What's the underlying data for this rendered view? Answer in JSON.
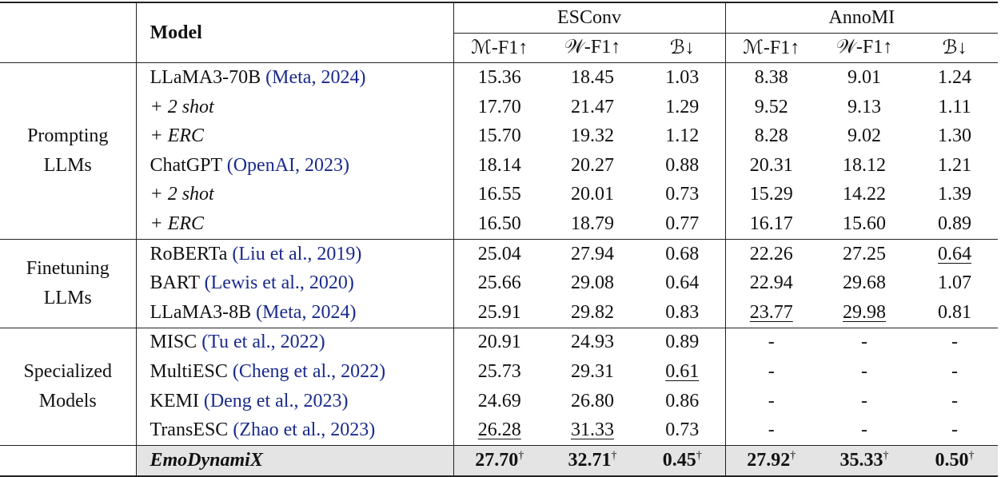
{
  "table": {
    "header": {
      "model": "Model",
      "groups": [
        "ESConv",
        "AnnoMI"
      ],
      "metrics": [
        "ℳ-F1↑",
        "𝒲-F1↑",
        "ℬ↓",
        "ℳ-F1↑",
        "𝒲-F1↑",
        "ℬ↓"
      ]
    },
    "sections": [
      {
        "label": "Prompting LLMs",
        "rows": [
          {
            "model": "LLaMA3-70B",
            "citation": "(Meta, 2024)",
            "values": [
              "15.36",
              "18.45",
              "1.03",
              "8.38",
              "9.01",
              "1.24"
            ]
          },
          {
            "model": "+ 2 shot",
            "italic": true,
            "values": [
              "17.70",
              "21.47",
              "1.29",
              "9.52",
              "9.13",
              "1.11"
            ]
          },
          {
            "model": "+ ERC",
            "italic": true,
            "values": [
              "15.70",
              "19.32",
              "1.12",
              "8.28",
              "9.02",
              "1.30"
            ]
          },
          {
            "model": "ChatGPT",
            "citation": "(OpenAI, 2023)",
            "values": [
              "18.14",
              "20.27",
              "0.88",
              "20.31",
              "18.12",
              "1.21"
            ]
          },
          {
            "model": "+ 2 shot",
            "italic": true,
            "values": [
              "16.55",
              "20.01",
              "0.73",
              "15.29",
              "14.22",
              "1.39"
            ]
          },
          {
            "model": "+ ERC",
            "italic": true,
            "values": [
              "16.50",
              "18.79",
              "0.77",
              "16.17",
              "15.60",
              "0.89"
            ]
          }
        ]
      },
      {
        "label": "Finetuning LLMs",
        "rows": [
          {
            "model": "RoBERTa",
            "citation": "(Liu et al., 2019)",
            "values": [
              "25.04",
              "27.94",
              "0.68",
              "22.26",
              "27.25",
              "0.64"
            ],
            "underlined": [
              5
            ]
          },
          {
            "model": "BART",
            "citation": "(Lewis et al., 2020)",
            "values": [
              "25.66",
              "29.08",
              "0.64",
              "22.94",
              "29.68",
              "1.07"
            ]
          },
          {
            "model": "LLaMA3-8B",
            "citation": "(Meta, 2024)",
            "values": [
              "25.91",
              "29.82",
              "0.83",
              "23.77",
              "29.98",
              "0.81"
            ],
            "underlined": [
              3,
              4
            ]
          }
        ]
      },
      {
        "label": "Specialized Models",
        "rows": [
          {
            "model": "MISC",
            "citation": "(Tu et al., 2022)",
            "values": [
              "20.91",
              "24.93",
              "0.89",
              "-",
              "-",
              "-"
            ]
          },
          {
            "model": "MultiESC",
            "citation": "(Cheng et al., 2022)",
            "values": [
              "25.73",
              "29.31",
              "0.61",
              "-",
              "-",
              "-"
            ],
            "underlined": [
              2
            ]
          },
          {
            "model": "KEMI",
            "citation": "(Deng et al., 2023)",
            "values": [
              "24.69",
              "26.80",
              "0.86",
              "-",
              "-",
              "-"
            ]
          },
          {
            "model": "TransESC",
            "citation": "(Zhao et al., 2023)",
            "values": [
              "26.28",
              "31.33",
              "0.73",
              "-",
              "-",
              "-"
            ],
            "underlined": [
              0,
              1
            ]
          }
        ]
      }
    ],
    "final_row": {
      "model": "EmoDynamiX",
      "italic": true,
      "bold": true,
      "shaded": true,
      "values": [
        "27.70",
        "32.71",
        "0.45",
        "27.92",
        "35.33",
        "0.50"
      ],
      "note": "†"
    }
  }
}
